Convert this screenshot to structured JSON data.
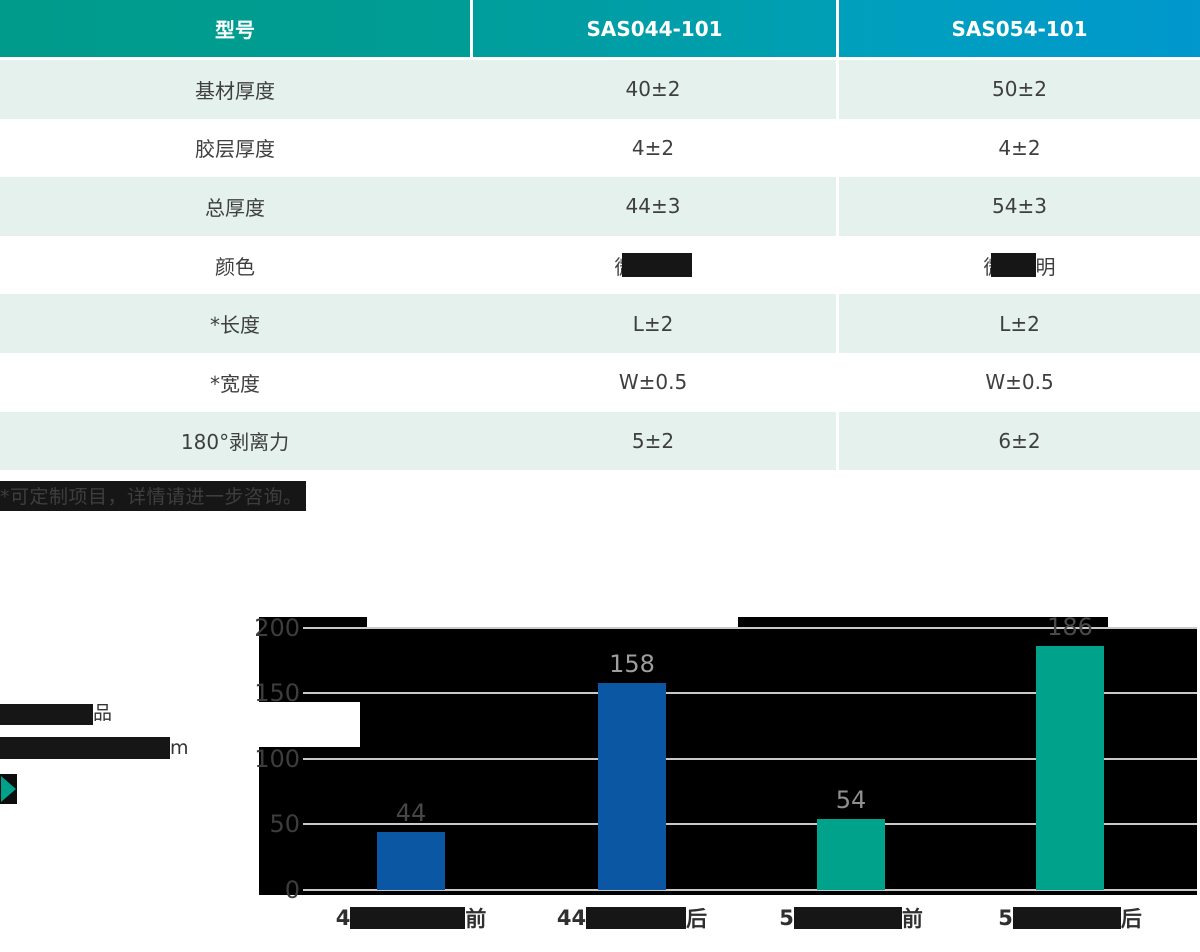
{
  "table": {
    "header": [
      "型号",
      "SAS044-101",
      "SAS054-101"
    ],
    "rows": [
      {
        "label": "基材厚度",
        "v1": "40±2",
        "v2": "50±2"
      },
      {
        "label": "胶层厚度",
        "v1": "4±2",
        "v2": "4±2"
      },
      {
        "label": "总厚度",
        "v1": "44±3",
        "v2": "54±3"
      },
      {
        "label": "颜色",
        "v1_lead": "微",
        "v2_lead": "微",
        "v2_trail": "明"
      },
      {
        "label": "*长度",
        "v1": "L±2",
        "v2": "L±2"
      },
      {
        "label": "*宽度",
        "v1": "W±0.5",
        "v2": "W±0.5"
      },
      {
        "label": "180°剥离力",
        "v1": "5±2",
        "v2": "6±2"
      }
    ],
    "footnote": "*可定制项目，详情请进一步咨询。"
  },
  "sidebar": {
    "line1_trail": "品",
    "line2_trail": "m"
  },
  "chart_data": {
    "type": "bar",
    "categories": [
      {
        "lead": "4",
        "trail": "前"
      },
      {
        "lead": "44",
        "trail": "后"
      },
      {
        "lead": "5",
        "trail": "前"
      },
      {
        "lead": "5",
        "trail": "后"
      }
    ],
    "values": [
      44,
      158,
      54,
      186
    ],
    "yticks": [
      "200",
      "150",
      "100",
      "50",
      "0"
    ],
    "ylim": [
      0,
      200
    ],
    "grid": true,
    "legend": "none",
    "plot_background": "#000000",
    "bar_colors": [
      "#0b57a4",
      "#0b57a4",
      "#00a28b",
      "#00a28b"
    ],
    "label_colors": [
      "#474747",
      "#9e9e9e",
      "#8f8f8f",
      "#4a4a4a"
    ]
  },
  "colors": {
    "header_gradient_left": "#009b8a",
    "header_gradient_right": "#0098cd",
    "row_alt_background": "#e4f1ed",
    "bar_blue": "#0b57a4",
    "bar_teal": "#00a28b",
    "bullet_teal": "#00a08b",
    "gridline": "#c9c9c9"
  }
}
